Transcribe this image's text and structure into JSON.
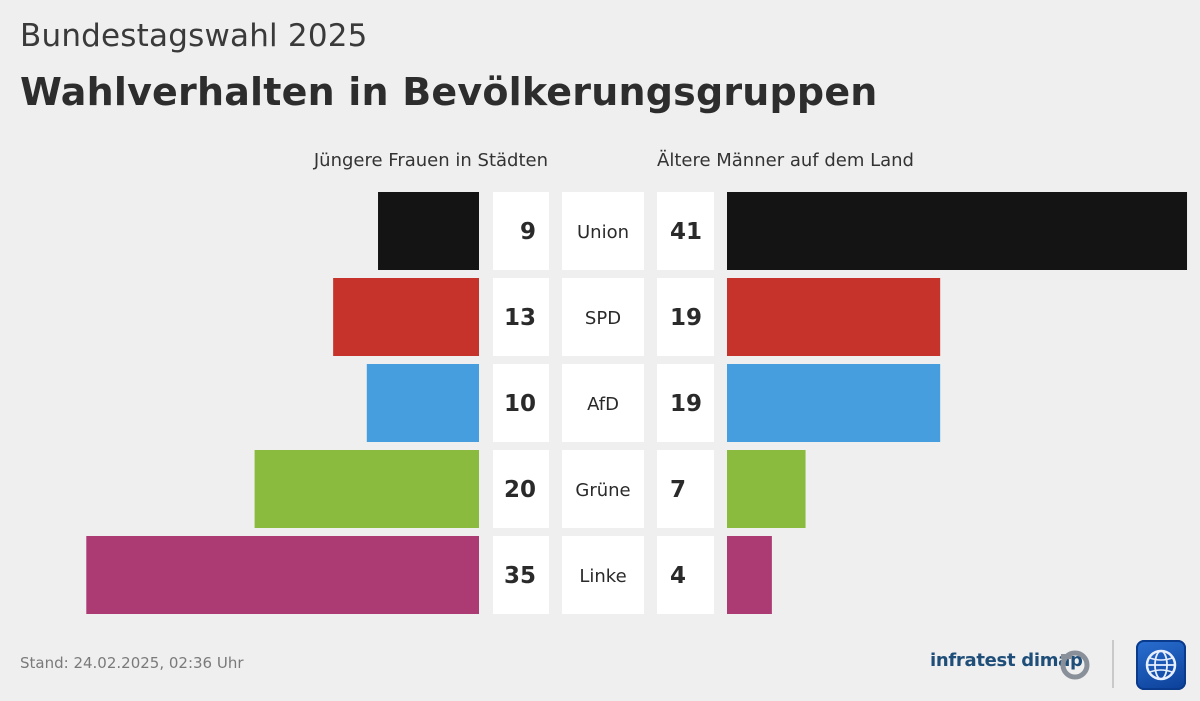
{
  "header": {
    "supertitle": "Bundestagswahl 2025",
    "title": "Wahlverhalten in Bevölkerungsgruppen"
  },
  "footer": {
    "stand": "Stand:  24.02.2025, 02:36 Uhr",
    "brand": "infratest dimap"
  },
  "chart_data": {
    "type": "bar",
    "orientation": "horizontal-butterfly",
    "categories": [
      "Union",
      "SPD",
      "AfD",
      "Grüne",
      "Linke"
    ],
    "colors": [
      "#141414",
      "#c6332b",
      "#479ede",
      "#8abb3f",
      "#ad3b73"
    ],
    "series": [
      {
        "name": "Jüngere Frauen in Städten",
        "values": [
          9,
          13,
          10,
          20,
          35
        ]
      },
      {
        "name": "Ältere Männer auf dem Land",
        "values": [
          41,
          19,
          19,
          7,
          4
        ]
      }
    ],
    "title": "Wahlverhalten in Bevölkerungsgruppen",
    "unit": "%"
  }
}
